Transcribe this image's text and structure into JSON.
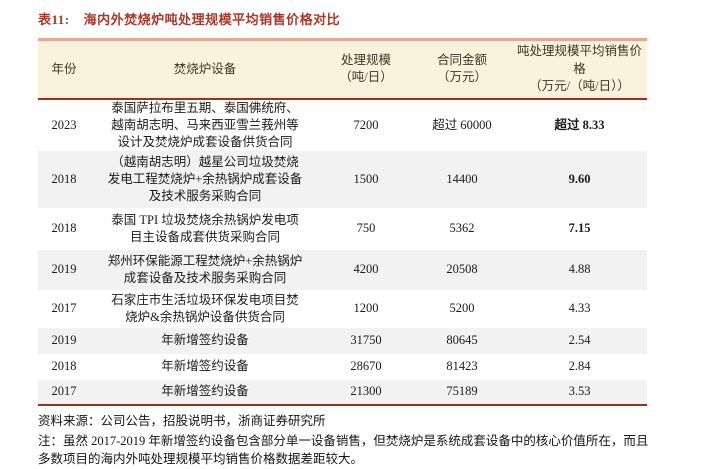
{
  "title": {
    "label": "表11:",
    "text": "海内外焚烧炉吨处理规模平均销售价格对比"
  },
  "table": {
    "headers": {
      "year": "年份",
      "equipment": "焚烧炉设备",
      "scale": "处理规模\n（吨/日）",
      "amount": "合同金额\n（万元）",
      "price": "吨处理规模平均销售价格\n（万元/（吨/日））"
    },
    "rows": [
      {
        "year": "2023",
        "equipment": "泰国萨拉布里五期、泰国佛统府、\n越南胡志明、马来西亚雪兰莪州等\n设计及焚烧炉成套设备供货合同",
        "scale": "7200",
        "amount": "超过 60000",
        "price": "超过 8.33"
      },
      {
        "year": "2018",
        "equipment": "（越南胡志明）越星公司垃圾焚烧\n发电工程焚烧炉+余热锅炉成套设备\n及技术服务采购合同",
        "scale": "1500",
        "amount": "14400",
        "price": "9.60"
      },
      {
        "year": "2018",
        "equipment": "泰国 TPI 垃圾焚烧余热锅炉发电项\n目主设备成套供货采购合同",
        "scale": "750",
        "amount": "5362",
        "price": "7.15"
      },
      {
        "year": "2019",
        "equipment": "郑州环保能源工程焚烧炉+余热锅炉\n成套设备及技术服务采购合同",
        "scale": "4200",
        "amount": "20508",
        "price": "4.88"
      },
      {
        "year": "2017",
        "equipment": "石家庄市生活垃圾环保发电项目焚\n烧炉&余热锅炉设备供货合同",
        "scale": "1200",
        "amount": "5200",
        "price": "4.33"
      },
      {
        "year": "2019",
        "equipment": "年新增签约设备",
        "scale": "31750",
        "amount": "80645",
        "price": "2.54"
      },
      {
        "year": "2018",
        "equipment": "年新增签约设备",
        "scale": "28670",
        "amount": "81423",
        "price": "2.84"
      },
      {
        "year": "2017",
        "equipment": "年新增签约设备",
        "scale": "21300",
        "amount": "75189",
        "price": "3.53"
      }
    ]
  },
  "footer": {
    "source": "资料来源：公司公告，招股说明书，浙商证券研究所",
    "note": "注：虽然 2017-2019 年新增签约设备包含部分单一设备销售，但焚烧炉是系统成套设备中的核心价值所在，而且\n多数项目的海内外吨处理规模平均销售价格数据差距较大。"
  },
  "colors": {
    "title_red": "#a9392a",
    "header_background": "#fbf2db",
    "header_top_border": "#e9a793",
    "dark_red_border": "#9e2f1e",
    "stripe_gray": "#f2f2f2",
    "body_text": "#1a1a1a"
  }
}
